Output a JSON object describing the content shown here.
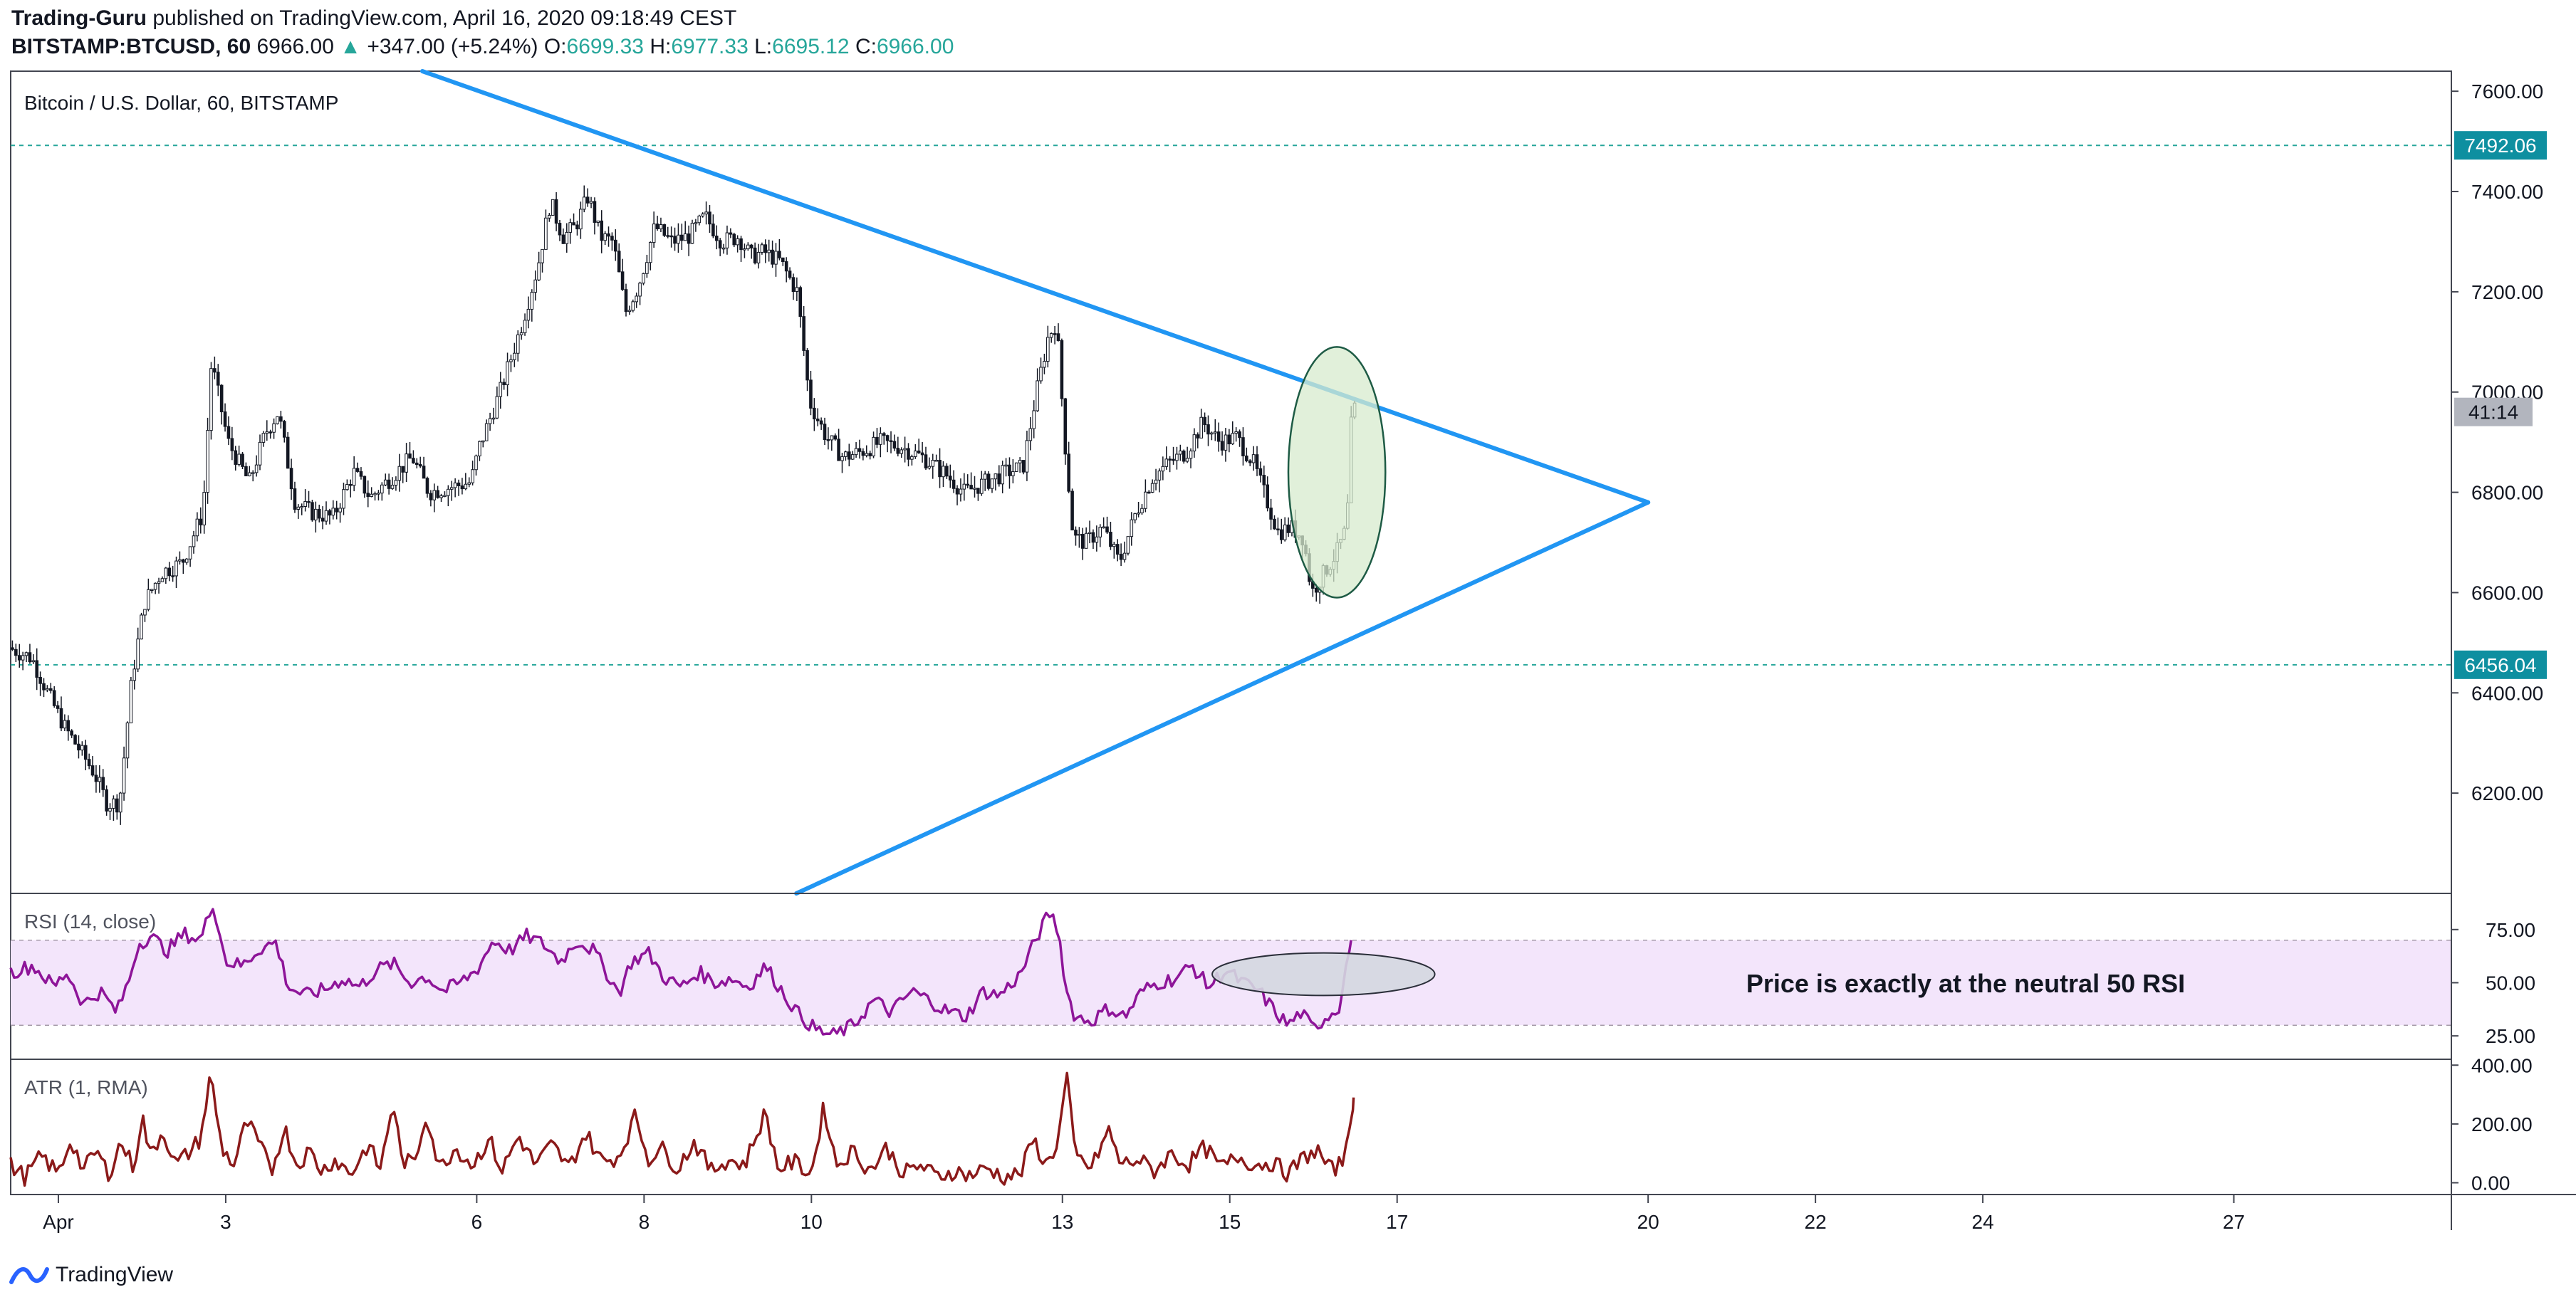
{
  "header": {
    "author": "Trading-Guru",
    "published_text": "published on TradingView.com, April 16, 2020 09:18:49 CEST",
    "symbol": "BITSTAMP:BTCUSD, 60",
    "last_price": "6966.00",
    "change": "+347.00 (+5.24%)",
    "open_label": "O:",
    "open": "6699.33",
    "high_label": "H:",
    "high": "6977.33",
    "low_label": "L:",
    "low": "6695.12",
    "close_label": "C:",
    "close": "6966.00"
  },
  "colors": {
    "trendline": "#2196f3",
    "level_line": "#26a69a",
    "rsi_line": "#8e1599",
    "rsi_band": "#f3e5fb",
    "atr_line": "#8b1a1a",
    "candle": "#131722",
    "highlight_ellipse_fill": "#d7ebcd",
    "highlight_ellipse_stroke": "#1e5b45",
    "rsi_ellipse_fill": "#d4d7e0",
    "label_teal": "#0e8fa0",
    "label_gray": "#b2b5be"
  },
  "chart_data": [
    {
      "type": "candlestick",
      "title": "Bitcoin / U.S. Dollar, 60, BITSTAMP",
      "ylim": [
        6000,
        7640
      ],
      "y_ticks": [
        "7600.00",
        "7400.00",
        "7200.00",
        "7000.00",
        "6800.00",
        "6600.00",
        "6400.00",
        "6200.00"
      ],
      "y_tick_values": [
        7600,
        7400,
        7200,
        7000,
        6800,
        6600,
        6400,
        6200
      ],
      "x_ticks": [
        "Apr",
        "3",
        "6",
        "8",
        "10",
        "13",
        "15",
        "17",
        "20",
        "22",
        "24",
        "27"
      ],
      "x_tick_days": [
        1,
        3,
        6,
        8,
        10,
        13,
        15,
        17,
        20,
        22,
        24,
        27
      ],
      "xlim_days": [
        0.43,
        29.6
      ],
      "horizontal_levels": [
        {
          "value": 7492.06,
          "label": "7492.06"
        },
        {
          "value": 6456.04,
          "label": "6456.04"
        }
      ],
      "countdown_label": "41:14",
      "triangle": {
        "upper_line": [
          {
            "day": 5.35,
            "price": 7640
          },
          {
            "day": 20.0,
            "price": 6780
          }
        ],
        "lower_line": [
          {
            "day": 9.82,
            "price": 6000
          },
          {
            "day": 20.0,
            "price": 6780
          }
        ]
      },
      "highlight_ellipse": {
        "day": 16.28,
        "price": 6840,
        "day_radius": 0.58,
        "price_radius": 250
      },
      "price_path": [
        [
          0.43,
          6490
        ],
        [
          0.7,
          6470
        ],
        [
          0.95,
          6380
        ],
        [
          1.1,
          6330
        ],
        [
          1.3,
          6280
        ],
        [
          1.45,
          6240
        ],
        [
          1.6,
          6180
        ],
        [
          1.75,
          6180
        ],
        [
          1.9,
          6430
        ],
        [
          2.05,
          6580
        ],
        [
          2.25,
          6640
        ],
        [
          2.5,
          6660
        ],
        [
          2.75,
          6760
        ],
        [
          2.85,
          7060
        ],
        [
          3.05,
          6900
        ],
        [
          3.3,
          6820
        ],
        [
          3.5,
          6920
        ],
        [
          3.65,
          6960
        ],
        [
          3.85,
          6780
        ],
        [
          4.05,
          6760
        ],
        [
          4.3,
          6750
        ],
        [
          4.55,
          6840
        ],
        [
          4.75,
          6790
        ],
        [
          5.0,
          6830
        ],
        [
          5.25,
          6870
        ],
        [
          5.45,
          6800
        ],
        [
          5.7,
          6810
        ],
        [
          5.95,
          6820
        ],
        [
          6.05,
          6890
        ],
        [
          6.3,
          7000
        ],
        [
          6.55,
          7130
        ],
        [
          6.75,
          7250
        ],
        [
          6.9,
          7380
        ],
        [
          7.05,
          7310
        ],
        [
          7.2,
          7330
        ],
        [
          7.35,
          7390
        ],
        [
          7.5,
          7310
        ],
        [
          7.65,
          7300
        ],
        [
          7.8,
          7160
        ],
        [
          7.95,
          7210
        ],
        [
          8.15,
          7330
        ],
        [
          8.35,
          7300
        ],
        [
          8.55,
          7310
        ],
        [
          8.75,
          7350
        ],
        [
          8.95,
          7300
        ],
        [
          9.15,
          7310
        ],
        [
          9.3,
          7270
        ],
        [
          9.45,
          7280
        ],
        [
          9.65,
          7260
        ],
        [
          9.85,
          7200
        ],
        [
          10.0,
          6980
        ],
        [
          10.2,
          6910
        ],
        [
          10.4,
          6870
        ],
        [
          10.6,
          6880
        ],
        [
          10.85,
          6900
        ],
        [
          11.1,
          6890
        ],
        [
          11.35,
          6870
        ],
        [
          11.6,
          6840
        ],
        [
          11.85,
          6800
        ],
        [
          12.1,
          6820
        ],
        [
          12.35,
          6840
        ],
        [
          12.55,
          6850
        ],
        [
          12.7,
          6990
        ],
        [
          12.85,
          7110
        ],
        [
          12.95,
          7140
        ],
        [
          13.05,
          6900
        ],
        [
          13.15,
          6710
        ],
        [
          13.3,
          6700
        ],
        [
          13.5,
          6730
        ],
        [
          13.7,
          6660
        ],
        [
          13.9,
          6760
        ],
        [
          14.1,
          6830
        ],
        [
          14.3,
          6860
        ],
        [
          14.5,
          6880
        ],
        [
          14.7,
          6940
        ],
        [
          14.9,
          6900
        ],
        [
          15.1,
          6910
        ],
        [
          15.3,
          6860
        ],
        [
          15.45,
          6790
        ],
        [
          15.6,
          6720
        ],
        [
          15.75,
          6730
        ],
        [
          15.9,
          6710
        ],
        [
          16.0,
          6600
        ],
        [
          16.15,
          6640
        ],
        [
          16.3,
          6680
        ],
        [
          16.42,
          6730
        ],
        [
          16.48,
          6966
        ]
      ]
    },
    {
      "type": "line",
      "title": "RSI (14, close)",
      "ylim": [
        14,
        92
      ],
      "y_ticks": [
        "75.00",
        "50.00",
        "25.00"
      ],
      "y_tick_values": [
        75,
        50,
        25
      ],
      "band": [
        30,
        70
      ],
      "annotation": "Price is exactly at the neutral 50 RSI",
      "highlight_ellipse": {
        "day": 16.12,
        "value": 54,
        "day_radius": 1.33,
        "value_radius": 10
      },
      "series": [
        {
          "points": [
            [
              0.43,
              55
            ],
            [
              0.7,
              58
            ],
            [
              0.95,
              48
            ],
            [
              1.1,
              55
            ],
            [
              1.3,
              40
            ],
            [
              1.5,
              46
            ],
            [
              1.7,
              36
            ],
            [
              1.85,
              52
            ],
            [
              1.95,
              68
            ],
            [
              2.1,
              72
            ],
            [
              2.3,
              65
            ],
            [
              2.5,
              73
            ],
            [
              2.7,
              70
            ],
            [
              2.85,
              88
            ],
            [
              3.0,
              60
            ],
            [
              3.2,
              58
            ],
            [
              3.4,
              66
            ],
            [
              3.6,
              69
            ],
            [
              3.75,
              48
            ],
            [
              3.95,
              44
            ],
            [
              4.2,
              47
            ],
            [
              4.4,
              52
            ],
            [
              4.6,
              48
            ],
            [
              4.8,
              56
            ],
            [
              5.0,
              59
            ],
            [
              5.2,
              50
            ],
            [
              5.4,
              53
            ],
            [
              5.6,
              46
            ],
            [
              5.8,
              50
            ],
            [
              6.0,
              56
            ],
            [
              6.2,
              70
            ],
            [
              6.4,
              65
            ],
            [
              6.6,
              72
            ],
            [
              6.8,
              68
            ],
            [
              7.0,
              60
            ],
            [
              7.2,
              70
            ],
            [
              7.4,
              65
            ],
            [
              7.55,
              55
            ],
            [
              7.7,
              45
            ],
            [
              7.85,
              60
            ],
            [
              8.05,
              64
            ],
            [
              8.25,
              52
            ],
            [
              8.45,
              48
            ],
            [
              8.65,
              55
            ],
            [
              8.85,
              50
            ],
            [
              9.05,
              52
            ],
            [
              9.25,
              48
            ],
            [
              9.45,
              58
            ],
            [
              9.65,
              46
            ],
            [
              9.85,
              35
            ],
            [
              10.05,
              28
            ],
            [
              10.25,
              25
            ],
            [
              10.5,
              30
            ],
            [
              10.75,
              42
            ],
            [
              10.95,
              36
            ],
            [
              11.2,
              46
            ],
            [
              11.4,
              42
            ],
            [
              11.6,
              37
            ],
            [
              11.85,
              34
            ],
            [
              12.05,
              46
            ],
            [
              12.25,
              44
            ],
            [
              12.5,
              54
            ],
            [
              12.7,
              72
            ],
            [
              12.85,
              83
            ],
            [
              12.95,
              75
            ],
            [
              13.05,
              46
            ],
            [
              13.15,
              34
            ],
            [
              13.35,
              32
            ],
            [
              13.55,
              38
            ],
            [
              13.75,
              34
            ],
            [
              13.95,
              46
            ],
            [
              14.15,
              50
            ],
            [
              14.35,
              52
            ],
            [
              14.55,
              58
            ],
            [
              14.75,
              48
            ],
            [
              14.95,
              56
            ],
            [
              15.15,
              50
            ],
            [
              15.35,
              46
            ],
            [
              15.55,
              36
            ],
            [
              15.7,
              30
            ],
            [
              15.85,
              36
            ],
            [
              16.0,
              28
            ],
            [
              16.15,
              34
            ],
            [
              16.3,
              38
            ],
            [
              16.45,
              70
            ]
          ]
        }
      ]
    },
    {
      "type": "line",
      "title": "ATR (1, RMA)",
      "ylim": [
        -40,
        420
      ],
      "y_ticks": [
        "400.00",
        "200.00",
        "0.00"
      ],
      "y_tick_values": [
        400,
        200,
        0
      ],
      "series": [
        {
          "points": [
            [
              0.43,
              60
            ],
            [
              0.6,
              20
            ],
            [
              0.8,
              90
            ],
            [
              1.0,
              30
            ],
            [
              1.15,
              150
            ],
            [
              1.3,
              40
            ],
            [
              1.45,
              110
            ],
            [
              1.6,
              30
            ],
            [
              1.75,
              140
            ],
            [
              1.9,
              50
            ],
            [
              2.0,
              230
            ],
            [
              2.1,
              90
            ],
            [
              2.25,
              180
            ],
            [
              2.4,
              60
            ],
            [
              2.55,
              100
            ],
            [
              2.7,
              150
            ],
            [
              2.82,
              370
            ],
            [
              2.95,
              120
            ],
            [
              3.1,
              60
            ],
            [
              3.25,
              210
            ],
            [
              3.4,
              130
            ],
            [
              3.55,
              40
            ],
            [
              3.7,
              190
            ],
            [
              3.85,
              60
            ],
            [
              4.0,
              110
            ],
            [
              4.15,
              40
            ],
            [
              4.3,
              80
            ],
            [
              4.5,
              30
            ],
            [
              4.7,
              130
            ],
            [
              4.85,
              45
            ],
            [
              5.0,
              280
            ],
            [
              5.1,
              80
            ],
            [
              5.25,
              60
            ],
            [
              5.4,
              240
            ],
            [
              5.55,
              50
            ],
            [
              5.75,
              120
            ],
            [
              5.95,
              60
            ],
            [
              6.15,
              150
            ],
            [
              6.3,
              40
            ],
            [
              6.5,
              160
            ],
            [
              6.7,
              60
            ],
            [
              6.9,
              130
            ],
            [
              7.1,
              50
            ],
            [
              7.3,
              170
            ],
            [
              7.5,
              70
            ],
            [
              7.7,
              90
            ],
            [
              7.9,
              230
            ],
            [
              8.05,
              80
            ],
            [
              8.2,
              120
            ],
            [
              8.4,
              50
            ],
            [
              8.6,
              140
            ],
            [
              8.8,
              40
            ],
            [
              9.0,
              80
            ],
            [
              9.2,
              60
            ],
            [
              9.45,
              240
            ],
            [
              9.6,
              50
            ],
            [
              9.8,
              70
            ],
            [
              10.0,
              30
            ],
            [
              10.15,
              260
            ],
            [
              10.3,
              60
            ],
            [
              10.5,
              110
            ],
            [
              10.7,
              40
            ],
            [
              10.9,
              120
            ],
            [
              11.1,
              30
            ],
            [
              11.3,
              60
            ],
            [
              11.5,
              20
            ],
            [
              11.7,
              40
            ],
            [
              11.9,
              25
            ],
            [
              12.1,
              50
            ],
            [
              12.3,
              20
            ],
            [
              12.5,
              30
            ],
            [
              12.65,
              150
            ],
            [
              12.8,
              60
            ],
            [
              12.95,
              140
            ],
            [
              13.05,
              370
            ],
            [
              13.15,
              90
            ],
            [
              13.35,
              50
            ],
            [
              13.55,
              180
            ],
            [
              13.7,
              60
            ],
            [
              13.9,
              80
            ],
            [
              14.1,
              40
            ],
            [
              14.3,
              100
            ],
            [
              14.5,
              60
            ],
            [
              14.7,
              120
            ],
            [
              14.9,
              50
            ],
            [
              15.1,
              90
            ],
            [
              15.3,
              60
            ],
            [
              15.5,
              70
            ],
            [
              15.7,
              30
            ],
            [
              15.9,
              90
            ],
            [
              16.05,
              110
            ],
            [
              16.2,
              40
            ],
            [
              16.35,
              70
            ],
            [
              16.48,
              290
            ]
          ]
        }
      ]
    }
  ],
  "footer": {
    "brand": "TradingView"
  }
}
